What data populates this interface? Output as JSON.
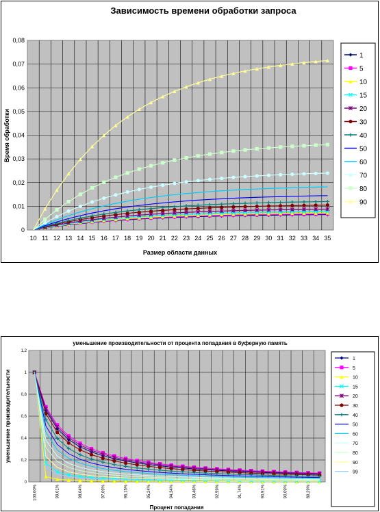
{
  "chart_data": [
    {
      "type": "line",
      "title": "Зависимость времени обработки запроса",
      "xlabel": "Размер области данных",
      "ylabel": "Время обработки",
      "x": [
        10,
        11,
        12,
        13,
        14,
        15,
        16,
        17,
        18,
        19,
        20,
        21,
        22,
        23,
        24,
        25,
        26,
        27,
        28,
        29,
        30,
        31,
        32,
        33,
        34,
        35
      ],
      "ylim": [
        0,
        0.08
      ],
      "y_ticks": [
        "0",
        "0,01",
        "0,02",
        "0,03",
        "0,04",
        "0,05",
        "0,06",
        "0,07",
        "0,08"
      ],
      "grid": true,
      "legend_position": "right",
      "series": [
        {
          "name": "1",
          "color": "#000080",
          "marker": "diamond",
          "final": 0.0065
        },
        {
          "name": "5",
          "color": "#ff00ff",
          "marker": "square",
          "final": 0.0068
        },
        {
          "name": "10",
          "color": "#ffff00",
          "marker": "triangle",
          "final": 0.0072
        },
        {
          "name": "15",
          "color": "#00ffff",
          "marker": "x",
          "final": 0.0078
        },
        {
          "name": "20",
          "color": "#800080",
          "marker": "star",
          "final": 0.0088
        },
        {
          "name": "30",
          "color": "#800000",
          "marker": "circle",
          "final": 0.0105
        },
        {
          "name": "40",
          "color": "#008080",
          "marker": "plus",
          "final": 0.012
        },
        {
          "name": "50",
          "color": "#0000ff",
          "marker": "none",
          "final": 0.0145
        },
        {
          "name": "60",
          "color": "#00ccff",
          "marker": "none",
          "final": 0.0182
        },
        {
          "name": "70",
          "color": "#ccffff",
          "marker": "circle",
          "final": 0.024
        },
        {
          "name": "80",
          "color": "#ccffcc",
          "marker": "square",
          "final": 0.036
        },
        {
          "name": "90",
          "color": "#ffff99",
          "marker": "triangle",
          "final": 0.0715
        }
      ]
    },
    {
      "type": "line",
      "title": "уменьшение производительности от процента попадания в буферную память",
      "xlabel": "Процент попадания",
      "ylabel": "уменьшение производительности",
      "ylim": [
        0,
        1.2
      ],
      "y_ticks": [
        "0",
        "0,2",
        "0,4",
        "0,6",
        "0,8",
        "1",
        "1,2"
      ],
      "x_tick_labels": [
        "100,00%",
        "99,01%",
        "98,04%",
        "97,09%",
        "96,15%",
        "95,24%",
        "94,34%",
        "93,46%",
        "92,59%",
        "91,74%",
        "90,91%",
        "90,09%",
        "89,29%"
      ],
      "grid": true,
      "legend_position": "right",
      "series": [
        {
          "name": "1",
          "color": "#000080",
          "marker": "diamond",
          "final": 0.07
        },
        {
          "name": "5",
          "color": "#ff00ff",
          "marker": "square",
          "final": 0.08
        },
        {
          "name": "10",
          "color": "#ffff00",
          "marker": "triangle",
          "final": 0.002
        },
        {
          "name": "15",
          "color": "#00ffff",
          "marker": "x",
          "final": 0.008
        },
        {
          "name": "20",
          "color": "#800080",
          "marker": "star",
          "final": 0.075
        },
        {
          "name": "30",
          "color": "#800000",
          "marker": "circle",
          "final": 0.062
        },
        {
          "name": "40",
          "color": "#008080",
          "marker": "plus",
          "final": 0.05
        },
        {
          "name": "50",
          "color": "#0000ff",
          "marker": "none",
          "final": 0.04
        },
        {
          "name": "60",
          "color": "#00ccff",
          "marker": "none",
          "final": 0.032
        },
        {
          "name": "70",
          "color": "#ccffff",
          "marker": "none",
          "final": 0.024
        },
        {
          "name": "80",
          "color": "#ccffcc",
          "marker": "none",
          "final": 0.018
        },
        {
          "name": "90",
          "color": "#ffff99",
          "marker": "none",
          "final": 0.012
        },
        {
          "name": "99",
          "color": "#99ccff",
          "marker": "none",
          "final": 0.006
        }
      ]
    }
  ]
}
